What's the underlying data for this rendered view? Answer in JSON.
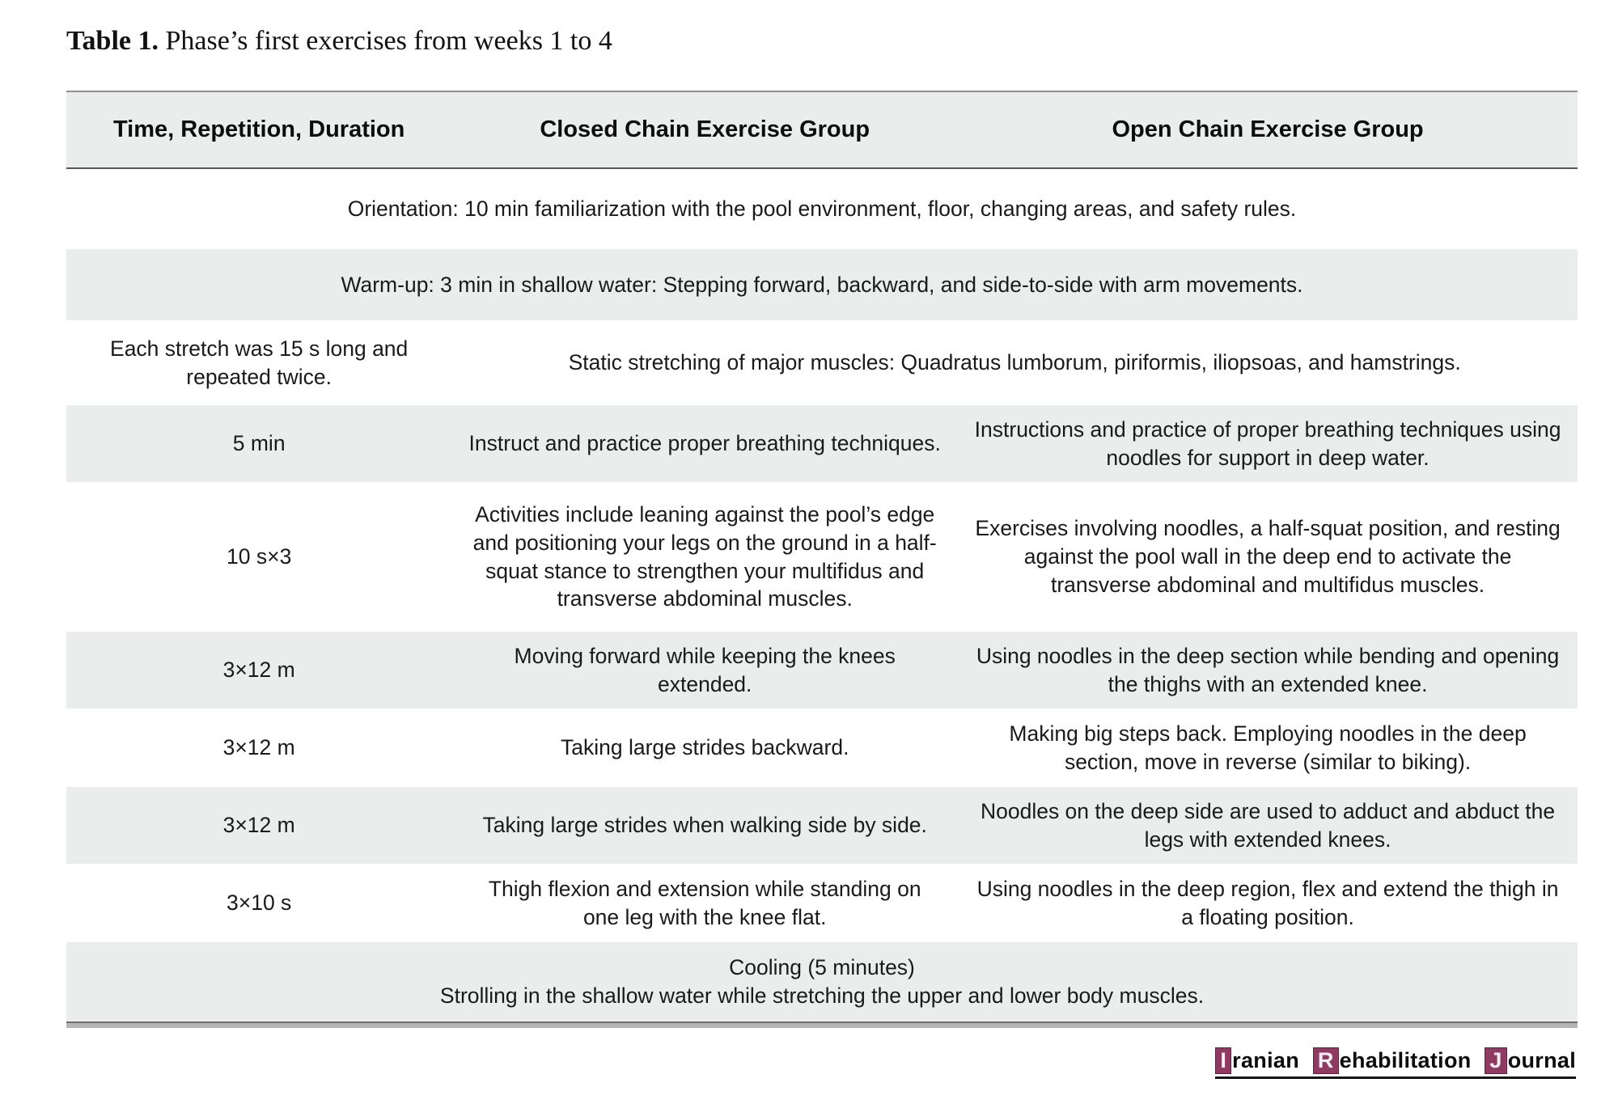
{
  "caption": {
    "label": "Table 1.",
    "text": "Phase’s first exercises from weeks 1 to 4"
  },
  "table": {
    "headers": [
      "Time, Repetition, Duration",
      "Closed Chain Exercise Group",
      "Open Chain Exercise Group"
    ],
    "rows": [
      {
        "text": "Orientation: 10 min familiarization with the pool environment, floor, changing areas, and safety rules."
      },
      {
        "text": "Warm-up: 3 min in shallow water: Stepping forward, backward, and side-to-side with arm movements."
      },
      {
        "time": "Each stretch was 15 s long and repeated twice.",
        "text": "Static stretching of major muscles: Quadratus lumborum, piriformis, iliopsoas, and hamstrings."
      },
      {
        "time": "5 min",
        "closed": "Instruct and practice proper breathing techniques.",
        "open": "Instructions and practice of proper breathing techniques using noodles for support in deep water."
      },
      {
        "time": "10 s×3",
        "closed": "Activities include leaning against the pool’s edge and positioning your legs on the ground in a half-squat stance to strengthen your multifidus and transverse abdominal muscles.",
        "open": "Exercises involving noodles, a half-squat position, and resting against the pool wall in the deep end to activate the transverse abdominal and multifidus muscles."
      },
      {
        "time": "3×12 m",
        "closed": "Moving forward while keeping the knees extended.",
        "open": "Using noodles in the deep section while bending and opening the thighs with an extended knee."
      },
      {
        "time": "3×12 m",
        "closed": "Taking large strides backward.",
        "open": "Making big steps back. Employing noodles in the deep section, move in reverse (similar to biking)."
      },
      {
        "time": "3×12 m",
        "closed": "Taking large strides when walking side by side.",
        "open": "Noodles on the deep side are used to adduct and abduct the legs with extended knees."
      },
      {
        "time": "3×10 s",
        "closed": "Thigh flexion and extension while standing on one leg with the knee flat.",
        "open": "Using noodles in the deep region, flex and extend the thigh in a floating position."
      },
      {
        "line1": "Cooling (5 minutes)",
        "line2": "Strolling in the shallow water while stretching the upper and lower body muscles."
      }
    ]
  },
  "journal_logo": {
    "accent_color": "#8e3a62",
    "words": [
      {
        "initial": "I",
        "rest": "ranian"
      },
      {
        "initial": "R",
        "rest": "ehabilitation"
      },
      {
        "initial": "J",
        "rest": "ournal"
      }
    ]
  }
}
